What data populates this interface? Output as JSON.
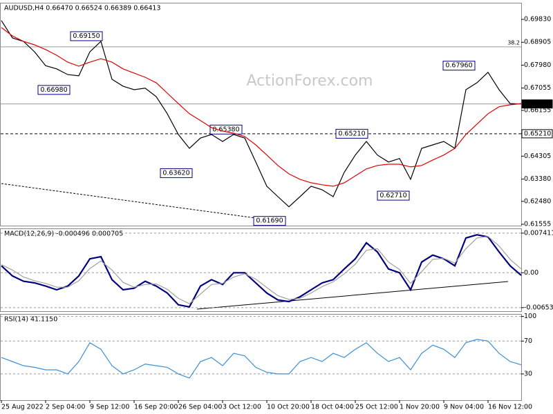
{
  "chart_data": [
    {
      "type": "line",
      "title": "AUDUSD,H4  0.66470 0.66524 0.66389 0.66413",
      "watermark": "ActionForex.com",
      "xlim": [
        0,
        188
      ],
      "ylim": [
        0.615,
        0.705
      ],
      "yticks": [
        {
          "value": 0.6983,
          "label": "0.69830"
        },
        0.68905,
        {
          "value": 0.6798,
          "label": "0.67980"
        },
        0.67055,
        0.66155,
        {
          "value": 0.6523,
          "label": "0.65230"
        },
        0.64305,
        {
          "value": 0.6338,
          "label": "0.63380"
        },
        {
          "value": 0.6248,
          "label": "0.62480"
        },
        0.61555
      ],
      "x": [
        0,
        4,
        8,
        12,
        16,
        20,
        24,
        28,
        32,
        36,
        40,
        44,
        48,
        52,
        56,
        60,
        64,
        68,
        72,
        76,
        80,
        84,
        88,
        92,
        96,
        100,
        104,
        108,
        112,
        116,
        120,
        124,
        128,
        132,
        136,
        140,
        144,
        148,
        152,
        156,
        160,
        164,
        168,
        172,
        176,
        180,
        184,
        188
      ],
      "series": [
        {
          "name": "AUDUSD",
          "color": "#000000",
          "values": [
            0.6978,
            0.6908,
            0.6894,
            0.6852,
            0.6796,
            0.6783,
            0.676,
            0.6755,
            0.6852,
            0.6894,
            0.6741,
            0.6713,
            0.6699,
            0.6705,
            0.6671,
            0.6602,
            0.6518,
            0.6462,
            0.6504,
            0.6518,
            0.649,
            0.6518,
            0.6504,
            0.6407,
            0.6309,
            0.6267,
            0.6226,
            0.6267,
            0.6309,
            0.6295,
            0.6267,
            0.6365,
            0.6435,
            0.649,
            0.6435,
            0.6407,
            0.6421,
            0.6337,
            0.6462,
            0.6476,
            0.649,
            0.6462,
            0.6699,
            0.6727,
            0.6769,
            0.6699,
            0.6643,
            0.66413
          ]
        },
        {
          "name": "MA",
          "color": "#e00000",
          "values": [
            0.695,
            0.6916,
            0.6894,
            0.688,
            0.6861,
            0.6838,
            0.681,
            0.6794,
            0.681,
            0.6824,
            0.681,
            0.6783,
            0.6766,
            0.6749,
            0.6727,
            0.6685,
            0.6643,
            0.6602,
            0.6574,
            0.6546,
            0.6532,
            0.6523,
            0.651,
            0.6476,
            0.6435,
            0.6393,
            0.6359,
            0.6337,
            0.6323,
            0.6315,
            0.6309,
            0.6323,
            0.6351,
            0.6379,
            0.6393,
            0.6398,
            0.6398,
            0.6387,
            0.6393,
            0.6415,
            0.6435,
            0.6462,
            0.6518,
            0.656,
            0.6602,
            0.663,
            0.6638,
            0.6643
          ]
        }
      ],
      "hlines": [
        {
          "value": 0.6872,
          "label": "38.2",
          "style": "solid"
        },
        {
          "value": 0.66413,
          "label": "0.66413",
          "style": "solid"
        },
        {
          "value": 0.6521,
          "label": "0.65210",
          "style": "dashed"
        }
      ],
      "annotations": [
        {
          "value": 0.6915,
          "label": "0.69150"
        },
        {
          "value": 0.6698,
          "label": "0.66980"
        },
        {
          "value": 0.6538,
          "label": "0.65380"
        },
        {
          "value": 0.6362,
          "label": "0.63620"
        },
        {
          "value": 0.6521,
          "label": "0.65210"
        },
        {
          "value": 0.6271,
          "label": "0.62710"
        },
        {
          "value": 0.6169,
          "label": "0.61690"
        },
        {
          "value": 0.6796,
          "label": "0.67960"
        }
      ]
    },
    {
      "type": "line",
      "title": "MACD(12,26,9) -0.000496 0.000705",
      "xlim": [
        0,
        188
      ],
      "ylim": [
        -0.0072,
        0.0083
      ],
      "yticks": [
        0.007411,
        {
          "value": 0,
          "label": "0.00"
        },
        -0.006532
      ],
      "x": [
        0,
        4,
        8,
        12,
        16,
        20,
        24,
        28,
        32,
        36,
        40,
        44,
        48,
        52,
        56,
        60,
        64,
        68,
        72,
        76,
        80,
        84,
        88,
        92,
        96,
        100,
        104,
        108,
        112,
        116,
        120,
        124,
        128,
        132,
        136,
        140,
        144,
        148,
        152,
        156,
        160,
        164,
        168,
        172,
        176,
        180,
        184,
        188
      ],
      "series": [
        {
          "name": "MACD",
          "color": "#000080",
          "values": [
            0.0013,
            -0.0006,
            -0.0016,
            -0.0019,
            -0.0025,
            -0.0032,
            -0.0025,
            -0.0006,
            0.0026,
            0.003,
            -0.0013,
            -0.0032,
            -0.0029,
            -0.0016,
            -0.0025,
            -0.0038,
            -0.006,
            -0.0064,
            -0.0025,
            -0.0013,
            -0.0022,
            0,
            0,
            -0.0019,
            -0.0038,
            -0.0051,
            -0.0054,
            -0.0045,
            -0.0032,
            -0.0019,
            -0.0013,
            0.0007,
            0.0026,
            0.0056,
            0.0039,
            0.0007,
            0,
            -0.0032,
            0.002,
            0.0033,
            0.0026,
            0.0013,
            0.0065,
            0.0071,
            0.0067,
            0.0039,
            0.0013,
            -0.000496
          ]
        },
        {
          "name": "Signal",
          "color": "#a0a0a0",
          "values": [
            0.0015,
            0.0005,
            -0.0008,
            -0.0015,
            -0.002,
            -0.0027,
            -0.0027,
            -0.0015,
            0.0008,
            0.0022,
            0.0005,
            -0.0018,
            -0.0027,
            -0.0022,
            -0.0021,
            -0.0031,
            -0.0048,
            -0.0058,
            -0.004,
            -0.0022,
            -0.002,
            -0.0008,
            -0.0002,
            -0.0012,
            -0.0028,
            -0.0043,
            -0.005,
            -0.0048,
            -0.0038,
            -0.0026,
            -0.0017,
            -0.0002,
            0.0016,
            0.0042,
            0.0045,
            0.002,
            0.0006,
            -0.002,
            0.0002,
            0.0025,
            0.0027,
            0.0018,
            0.0045,
            0.0065,
            0.0068,
            0.005,
            0.0025,
            0.000705
          ]
        }
      ]
    },
    {
      "type": "line",
      "title": "RSI(14) 41.1150",
      "xlim": [
        0,
        188
      ],
      "ylim": [
        -2,
        103
      ],
      "yticks": [
        100,
        70,
        30
      ],
      "xticks": [
        {
          "value": 0,
          "label": "25 Aug 2022"
        },
        {
          "value": 16,
          "label": "2 Sep 04:00"
        },
        {
          "value": 32,
          "label": "9 Sep 12:00"
        },
        {
          "value": 48,
          "label": "16 Sep 20:00"
        },
        {
          "value": 64,
          "label": "26 Sep 04:00"
        },
        {
          "value": 80,
          "label": "3 Oct 12:00"
        },
        {
          "value": 96,
          "label": "10 Oct 20:00"
        },
        {
          "value": 112,
          "label": "18 Oct 04:00"
        },
        {
          "value": 128,
          "label": "25 Oct 12:00"
        },
        {
          "value": 144,
          "label": "1 Nov 20:00"
        },
        {
          "value": 160,
          "label": "9 Nov 04:00"
        },
        {
          "value": 176,
          "label": "16 Nov 12:00"
        }
      ],
      "x": [
        0,
        4,
        8,
        12,
        16,
        20,
        24,
        28,
        32,
        36,
        40,
        44,
        48,
        52,
        56,
        60,
        64,
        68,
        72,
        76,
        80,
        84,
        88,
        92,
        96,
        100,
        104,
        108,
        112,
        116,
        120,
        124,
        128,
        132,
        136,
        140,
        144,
        148,
        152,
        156,
        160,
        164,
        168,
        172,
        176,
        180,
        184,
        188
      ],
      "series": [
        {
          "name": "RSI",
          "color": "#3a8fd8",
          "values": [
            50,
            45,
            40,
            38,
            35,
            35,
            30,
            45,
            68,
            60,
            40,
            30,
            35,
            42,
            40,
            38,
            30,
            25,
            45,
            50,
            40,
            55,
            52,
            38,
            32,
            30,
            30,
            45,
            50,
            45,
            55,
            50,
            60,
            68,
            55,
            45,
            50,
            35,
            55,
            65,
            60,
            50,
            68,
            72,
            70,
            55,
            45,
            41.115
          ]
        }
      ]
    }
  ]
}
